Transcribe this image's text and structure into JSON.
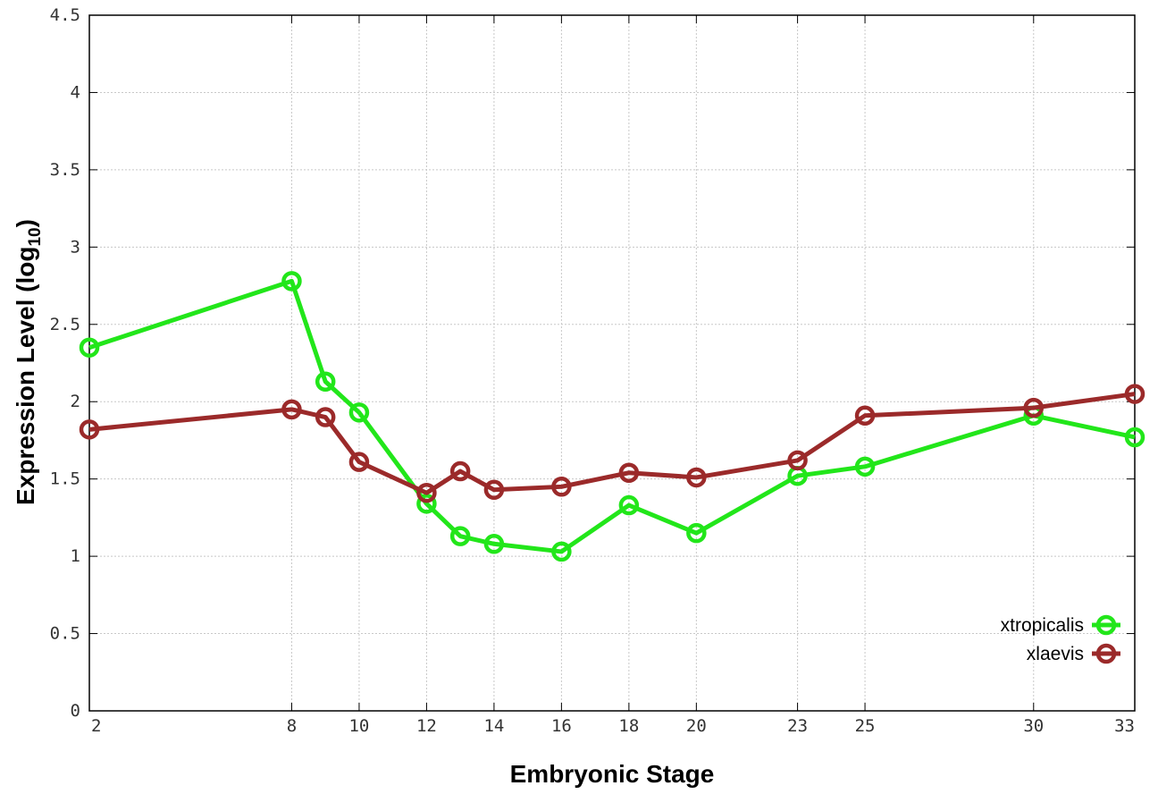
{
  "chart_data": {
    "type": "line",
    "xlabel": "Embryonic Stage",
    "ylabel_main": "Expression Level (log",
    "ylabel_sub": "10",
    "ylabel_close": ")",
    "x": [
      2,
      8,
      9,
      10,
      12,
      13,
      14,
      16,
      18,
      20,
      23,
      25,
      30,
      33
    ],
    "xticks": [
      2,
      8,
      10,
      12,
      14,
      16,
      18,
      20,
      23,
      25,
      30,
      33
    ],
    "xtick_labels": [
      "2",
      "8",
      "10",
      "12",
      "14",
      "16",
      "18",
      "20",
      "23",
      "25",
      "30",
      "33"
    ],
    "xlim": [
      2,
      33
    ],
    "yticks": [
      0,
      0.5,
      1,
      1.5,
      2,
      2.5,
      3,
      3.5,
      4,
      4.5
    ],
    "ytick_labels": [
      "0",
      "0.5",
      "1",
      "1.5",
      "2",
      "2.5",
      "3",
      "3.5",
      "4",
      "4.5"
    ],
    "ylim": [
      0,
      4.5
    ],
    "grid": true,
    "legend_position": "bottom-right",
    "series": [
      {
        "name": "xtropicalis",
        "color": "#22e61a",
        "marker": "open-circle",
        "values": [
          2.35,
          2.78,
          2.13,
          1.93,
          1.34,
          1.13,
          1.08,
          1.03,
          1.33,
          1.15,
          1.52,
          1.58,
          1.91,
          1.77
        ]
      },
      {
        "name": "xlaevis",
        "color": "#9b2a2a",
        "marker": "open-circle",
        "values": [
          1.82,
          1.95,
          1.9,
          1.61,
          1.41,
          1.55,
          1.43,
          1.45,
          1.54,
          1.51,
          1.62,
          1.91,
          1.96,
          2.05
        ]
      }
    ]
  }
}
